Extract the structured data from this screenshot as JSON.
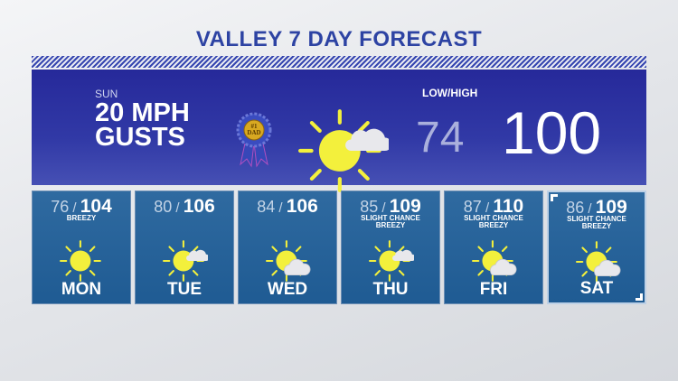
{
  "title": "VALLEY 7 DAY FORECAST",
  "today": {
    "day": "SUN",
    "headline_line1": "20 MPH",
    "headline_line2": "GUSTS",
    "badge_text": "#1 DAD",
    "icon": "sun-small-cloud",
    "low_high_label": "LOW/HIGH",
    "low": "74",
    "high": "100"
  },
  "days": [
    {
      "day": "MON",
      "low": "76",
      "high": "104",
      "note": [
        "BREEZY"
      ],
      "icon": "sun"
    },
    {
      "day": "TUE",
      "low": "80",
      "high": "106",
      "note": [],
      "icon": "sun-small-cloud"
    },
    {
      "day": "WED",
      "low": "84",
      "high": "106",
      "note": [],
      "icon": "partly-cloudy"
    },
    {
      "day": "THU",
      "low": "85",
      "high": "109",
      "note": [
        "SLIGHT CHANCE",
        "BREEZY"
      ],
      "icon": "sun-small-cloud"
    },
    {
      "day": "FRI",
      "low": "87",
      "high": "110",
      "note": [
        "SLIGHT CHANCE",
        "BREEZY"
      ],
      "icon": "partly-cloudy"
    },
    {
      "day": "SAT",
      "low": "86",
      "high": "109",
      "note": [
        "SLIGHT CHANCE",
        "BREEZY"
      ],
      "icon": "partly-cloudy",
      "selected": true
    }
  ],
  "colors": {
    "title": "#2d43a3",
    "panel": "#2b2f9e",
    "card": "#2a649b",
    "sun": "#f3f03c"
  }
}
